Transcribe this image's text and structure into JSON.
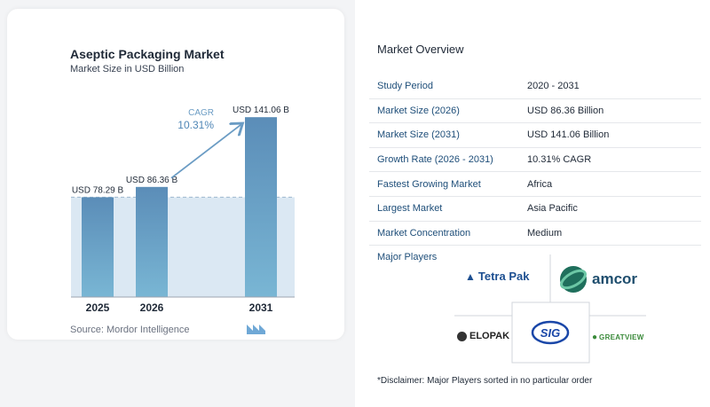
{
  "chart": {
    "title": "Aseptic Packaging Market",
    "subtitle": "Market Size in USD Billion",
    "source": "Source:  Mordor Intelligence",
    "cagr_label": "CAGR",
    "cagr_value": "10.31%"
  },
  "chart_data": {
    "type": "bar",
    "categories": [
      "2025",
      "2026",
      "2031"
    ],
    "values": [
      78.29,
      86.36,
      141.06
    ],
    "data_labels": [
      "USD 78.29 B",
      "USD 86.36 B",
      "USD 141.06 B"
    ],
    "title": "Aseptic Packaging Market",
    "subtitle": "Market Size in USD Billion",
    "xlabel": "",
    "ylabel": "",
    "ylim": [
      0,
      160
    ],
    "grid": false,
    "annotation": "CAGR 10.31%",
    "colors": {
      "bar": "#5b8db8",
      "bar_fade": "#79b6d4",
      "baseline_fill": "#dbe8f3",
      "arrow": "#6b9cc4"
    }
  },
  "overview": {
    "title": "Market Overview",
    "rows": [
      {
        "label": "Study Period",
        "value": "2020 - 2031"
      },
      {
        "label": "Market Size (2026)",
        "value": "USD 86.36 Billion"
      },
      {
        "label": "Market Size (2031)",
        "value": "USD 141.06 Billion"
      },
      {
        "label": "Growth Rate (2026 - 2031)",
        "value": "10.31% CAGR"
      },
      {
        "label": "Fastest Growing Market",
        "value": "Africa"
      },
      {
        "label": "Largest Market",
        "value": "Asia Pacific"
      },
      {
        "label": "Market Concentration",
        "value": "Medium"
      }
    ]
  },
  "players": {
    "title": "Major Players",
    "logos": {
      "tetrapak": "Tetra Pak",
      "amcor": "amcor",
      "elopak": "ELOPAK",
      "sig": "SIG",
      "greatview": "GREATVIEW"
    },
    "disclaimer": "*Disclaimer: Major Players sorted in no particular order"
  },
  "colors": {
    "label_blue": "#1e4e79",
    "tetra_blue": "#1d4f91",
    "amcor_green": "#2e8b57",
    "sig_blue": "#1a47a8",
    "greatview_green": "#3a8a3a"
  }
}
